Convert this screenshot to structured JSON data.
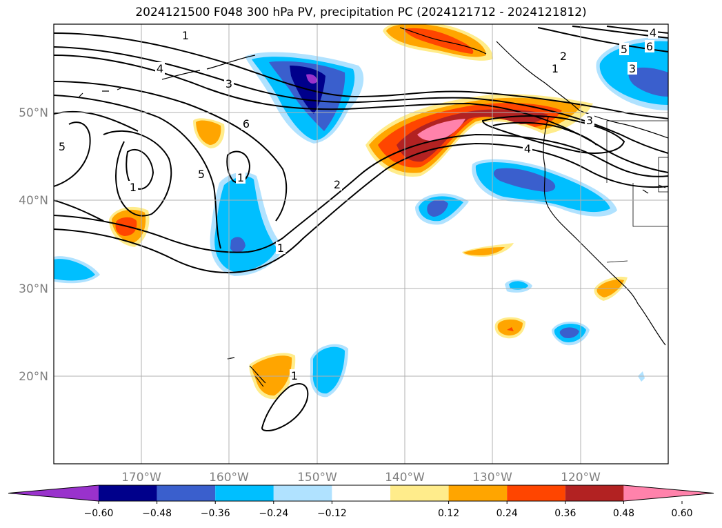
{
  "title": "2024121500 F048 300 hPa PV, precipitation PC (2024121712 - 2024121812)",
  "map": {
    "lon_range": [
      -180,
      -110
    ],
    "lat_range": [
      10,
      60
    ],
    "lon_ticks": [
      "170°W",
      "160°W",
      "150°W",
      "140°W",
      "130°W",
      "120°W"
    ],
    "lat_ticks": [
      "20°N",
      "30°N",
      "40°N",
      "50°N"
    ],
    "grid": true,
    "contour_labels": [
      "1",
      "1",
      "1",
      "1",
      "1",
      "1",
      "2",
      "2",
      "3",
      "3",
      "3",
      "4",
      "4",
      "4",
      "5",
      "5",
      "5",
      "6",
      "6"
    ]
  },
  "colorbar": {
    "ticks": [
      "−0.60",
      "−0.48",
      "−0.36",
      "−0.24",
      "−0.12",
      "0.12",
      "0.24",
      "0.36",
      "0.48",
      "0.60"
    ],
    "colors": [
      "#9932cc",
      "#00008b",
      "#3a5fcd",
      "#00bfff",
      "#b0e2ff",
      "#ffffff",
      "#ffec8b",
      "#ffa500",
      "#ff4500",
      "#b22222",
      "#ff82ab"
    ],
    "extend": "both"
  }
}
